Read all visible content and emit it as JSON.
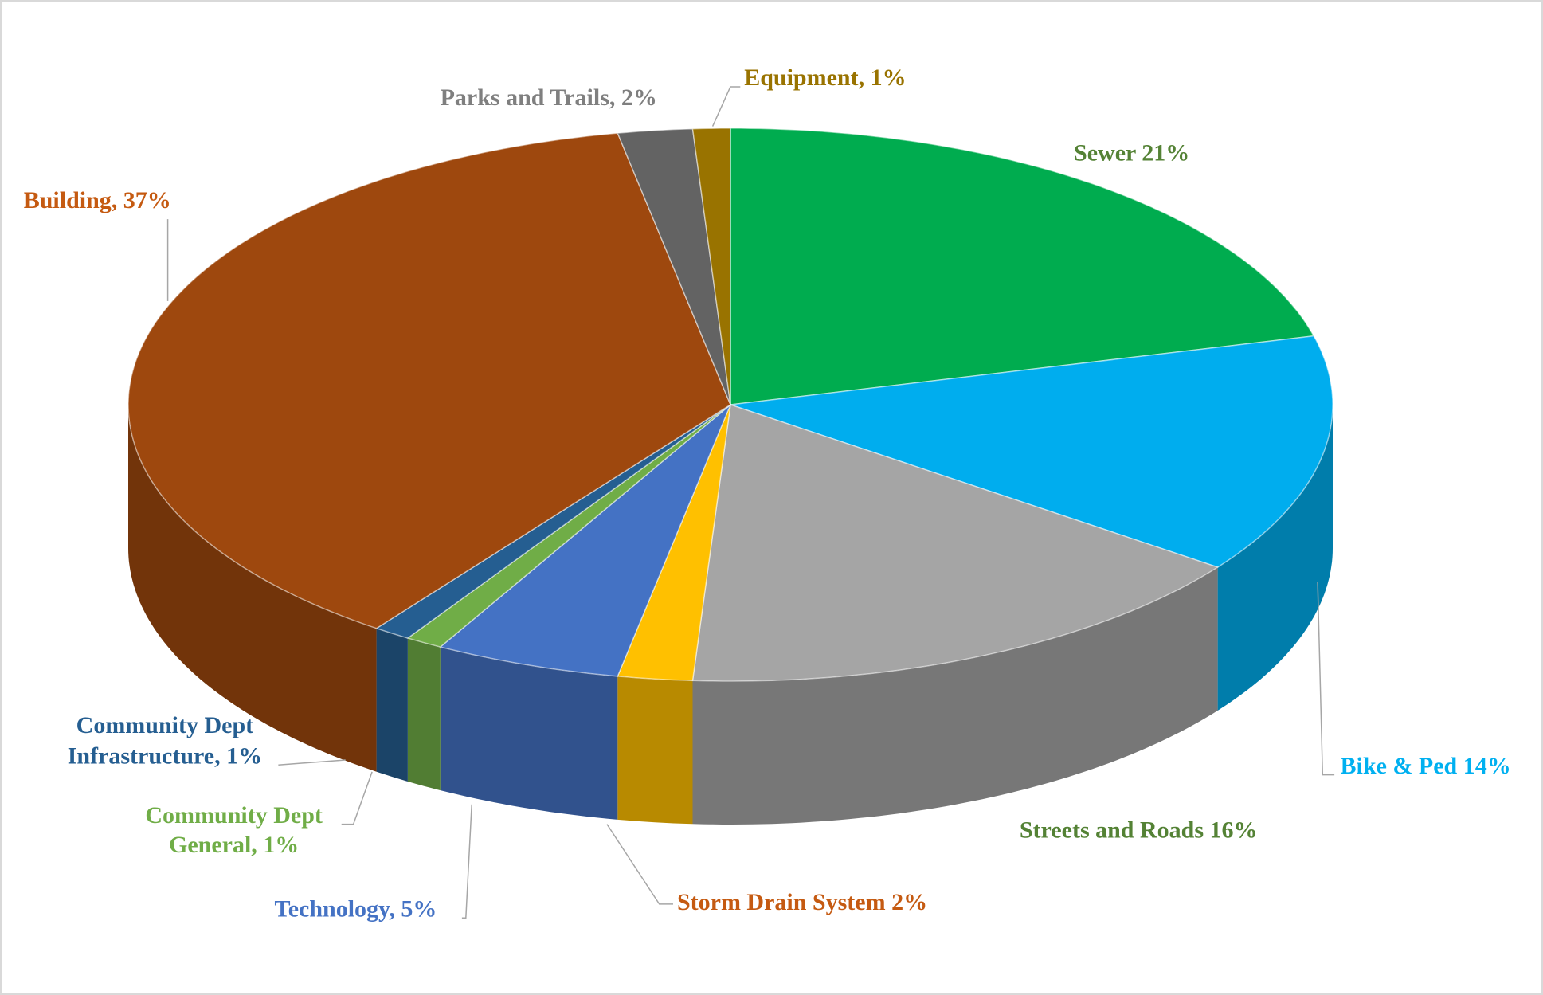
{
  "chart_data": {
    "type": "pie3d",
    "values": [
      21,
      14,
      16,
      2,
      5,
      1,
      1,
      37,
      2,
      1
    ],
    "value_labels": [
      [
        "Sewer 21%"
      ],
      [
        "Bike & Ped 14%"
      ],
      [
        "Streets and Roads 16%"
      ],
      [
        "Storm Drain System 2%"
      ],
      [
        "Technology, 5%"
      ],
      [
        "Community Dept",
        "General, 1%"
      ],
      [
        "Community Dept",
        "Infrastructure, 1%"
      ],
      [
        "Building, 37%"
      ],
      [
        "Parks and Trails, 2%"
      ],
      [
        "Equipment, 1%"
      ]
    ],
    "colors": [
      "#00ac4f",
      "#00adee",
      "#a5a5a5",
      "#ffc000",
      "#4472c4",
      "#70ad47",
      "#255e91",
      "#9e480e",
      "#636363",
      "#997300"
    ],
    "label_colors": [
      "#548235",
      "#00b0f0",
      "#548235",
      "#c55a11",
      "#4472c4",
      "#70ad47",
      "#255e91",
      "#c55a11",
      "#7f7f7f",
      "#997300"
    ]
  }
}
